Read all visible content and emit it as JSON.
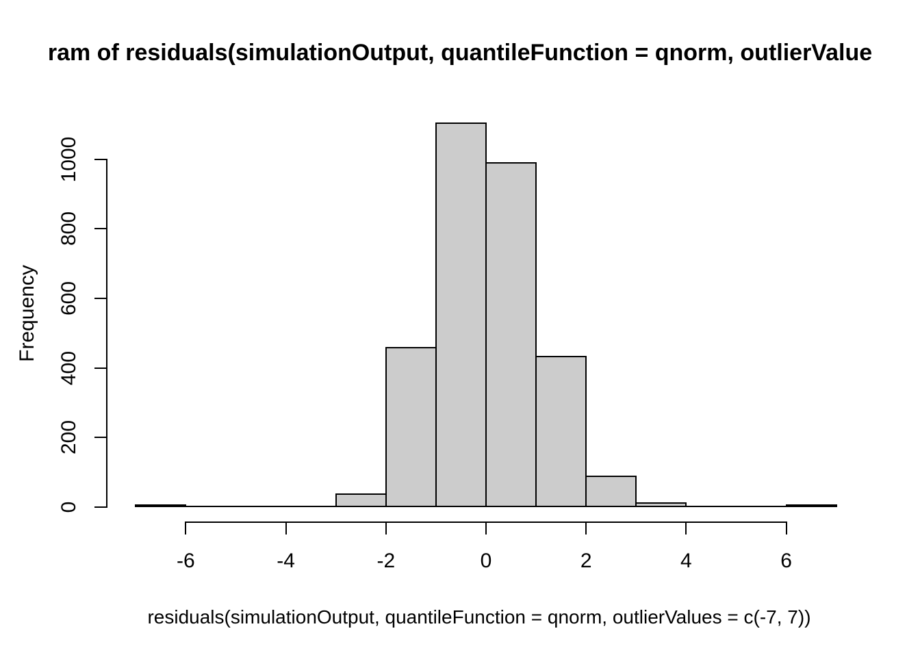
{
  "chart_data": {
    "type": "bar",
    "subtype": "histogram",
    "title_visible": "ram of residuals(simulationOutput, quantileFunction = qnorm, outlierValue",
    "xlabel": "residuals(simulationOutput, quantileFunction = qnorm, outlierValues = c(-7, 7))",
    "ylabel": "Frequency",
    "bin_breaks": [
      -7,
      -6,
      -5,
      -4,
      -3,
      -2,
      -1,
      0,
      1,
      2,
      3,
      4,
      5,
      6,
      7
    ],
    "counts": [
      3,
      0,
      0,
      0,
      40,
      460,
      1106,
      992,
      435,
      90,
      14,
      0,
      0,
      3
    ],
    "x_ticks": [
      "-6",
      "-4",
      "-2",
      "0",
      "2",
      "4",
      "6"
    ],
    "x_tick_values": [
      -6,
      -4,
      -2,
      0,
      2,
      4,
      6
    ],
    "y_ticks": [
      "0",
      "200",
      "400",
      "600",
      "800",
      "1000"
    ],
    "y_tick_values": [
      0,
      200,
      400,
      600,
      800,
      1000
    ],
    "xlim": [
      -7,
      7
    ],
    "ylim": [
      0,
      1106
    ],
    "grid": false,
    "legend": false,
    "bar_fill": "#cccccc",
    "bar_border": "#000000",
    "text_color": "#000000",
    "background": "#ffffff"
  }
}
